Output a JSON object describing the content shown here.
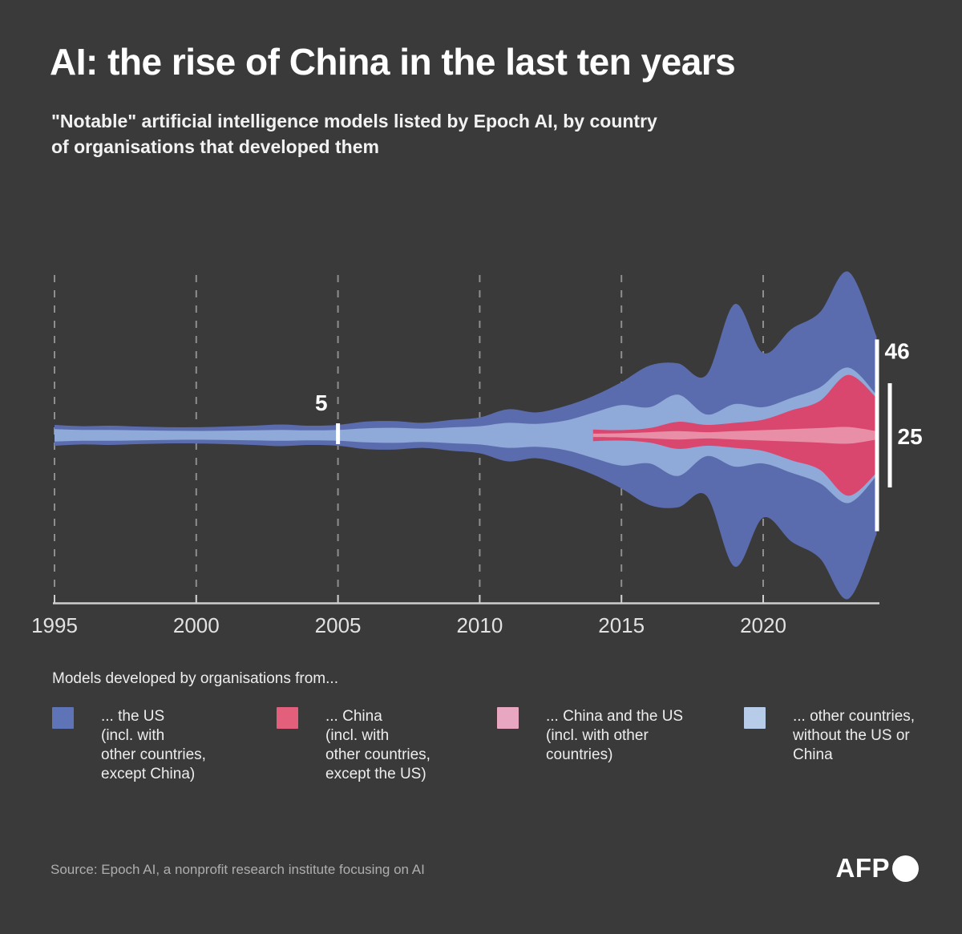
{
  "header": {
    "title": "AI: the rise of China in the last ten years",
    "subtitle": "\"Notable\" artificial intelligence models listed by Epoch AI, by country\nof organisations that developed them"
  },
  "chart_data": {
    "type": "area",
    "variant": "streamgraph-mirrored",
    "title": "Notable AI models per year by country of developing organisations",
    "x": [
      1995,
      1996,
      1997,
      1998,
      1999,
      2000,
      2001,
      2002,
      2003,
      2004,
      2005,
      2006,
      2007,
      2008,
      2009,
      2010,
      2011,
      2012,
      2013,
      2014,
      2015,
      2016,
      2017,
      2018,
      2019,
      2020,
      2021,
      2022,
      2023,
      2024
    ],
    "x_ticks": [
      "1995",
      "2000",
      "2005",
      "2010",
      "2015",
      "2020"
    ],
    "xlim": [
      1995,
      2024
    ],
    "grid": "dashed-vertical",
    "legend_position": "bottom",
    "series": [
      {
        "id": "china_us",
        "name": "China and the US",
        "color": "#e88ea6",
        "values": [
          0,
          0,
          0,
          0,
          0,
          0,
          0,
          0,
          0,
          0,
          0,
          0,
          0,
          0,
          0,
          0,
          0,
          0,
          0,
          0.8,
          1,
          1.5,
          2,
          1.5,
          2,
          2.5,
          3,
          3.5,
          4,
          2
        ]
      },
      {
        "id": "china",
        "name": "China",
        "color": "#d9476f",
        "values": [
          0,
          0,
          0,
          0,
          0,
          0,
          0,
          0,
          0,
          0,
          0,
          0,
          0,
          0,
          0,
          0,
          0,
          0,
          0,
          2,
          1.5,
          2,
          4.5,
          3.5,
          4,
          5,
          9,
          13,
          25,
          16
        ]
      },
      {
        "id": "other",
        "name": "Other countries",
        "color": "#8fa9d8",
        "values": [
          3,
          2.6,
          2.6,
          2.4,
          2.2,
          2.1,
          2.2,
          2.4,
          2.6,
          2.4,
          2.6,
          3.4,
          3.6,
          3.2,
          3.8,
          4.4,
          6,
          5.5,
          7,
          8,
          12,
          10,
          13,
          5,
          9,
          6,
          6,
          6.5,
          3.5,
          1.5
        ]
      },
      {
        "id": "us",
        "name": "The US",
        "color": "#5b6cae",
        "values": [
          2,
          1.8,
          2,
          1.8,
          1.7,
          1.8,
          2,
          2.2,
          2.6,
          2.2,
          2.4,
          3.2,
          3.2,
          2.8,
          3.6,
          4.2,
          6.5,
          5.5,
          7,
          8,
          11,
          20,
          15,
          19,
          48,
          26,
          33,
          36,
          46,
          28
        ]
      }
    ],
    "annotations": {
      "mid_tick": {
        "label": "5",
        "year": 2005,
        "models": 5
      },
      "bracket_us": {
        "label": "46",
        "models": 46
      },
      "bracket_china": {
        "label": "25",
        "models": 25
      }
    }
  },
  "legend": {
    "title": "Models developed by organisations from...",
    "items": [
      {
        "id": "us",
        "color": "#5f74b7",
        "label": "... the US\n(incl. with\nother countries,\nexcept China)"
      },
      {
        "id": "china",
        "color": "#e2607c",
        "label": "... China\n(incl. with\nother countries,\nexcept the US)"
      },
      {
        "id": "china_us",
        "color": "#e8a6c0",
        "label": "... China and the US\n(incl. with other\ncountries)"
      },
      {
        "id": "other",
        "color": "#b7cce9",
        "label": "... other countries,\nwithout the US or\nChina"
      }
    ]
  },
  "footer": {
    "source": "Source: Epoch AI, a nonprofit research institute focusing on AI",
    "brand": "AFP"
  }
}
